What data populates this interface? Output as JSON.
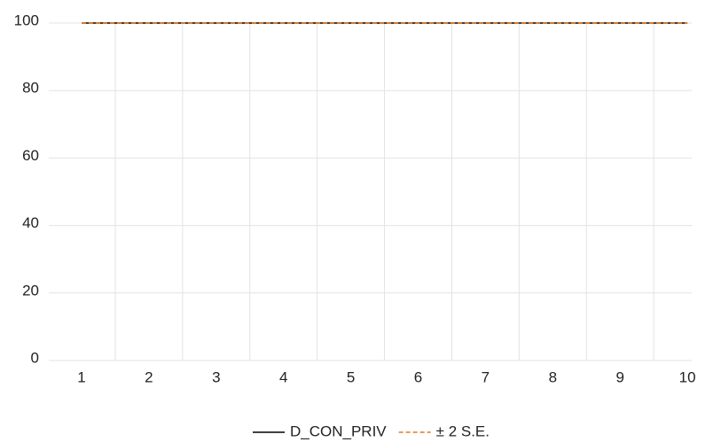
{
  "chart_data": {
    "type": "line",
    "categories": [
      "1",
      "2",
      "3",
      "4",
      "5",
      "6",
      "7",
      "8",
      "9",
      "10"
    ],
    "series": [
      {
        "name": "D_CON_PRIV",
        "color": "#000000",
        "dash": false,
        "values": [
          100,
          100,
          100,
          100,
          100,
          100,
          100,
          100,
          100,
          100
        ]
      },
      {
        "name": "± 2 S.E.",
        "color": "#e07b24",
        "dash": true,
        "values": [
          100,
          100,
          100,
          100,
          100,
          100,
          100,
          100,
          100,
          100
        ]
      }
    ],
    "ylim": [
      0,
      100
    ],
    "yticks": [
      0,
      20,
      40,
      60,
      80,
      100
    ],
    "grid": true,
    "legend": "bottom"
  }
}
